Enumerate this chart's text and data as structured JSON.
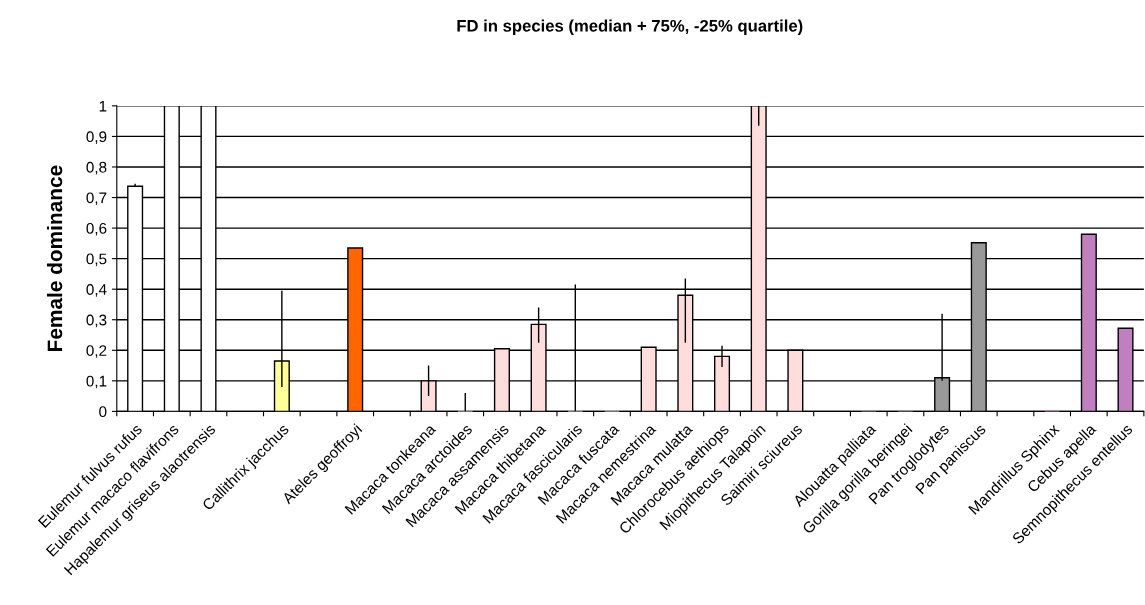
{
  "chart_data": {
    "type": "bar",
    "title": "FD in species (median + 75%, -25% quartile)",
    "ylabel": "Female dominance",
    "categories": [
      "Eulemur fulvus rufus",
      "Eulemur macaco flavifrons",
      "Hapalemur griseus alaotrensis",
      null,
      "Callithrix jacchus",
      null,
      "Ateles geoffroyi",
      null,
      "Macaca tonkeana",
      "Macaca arctoides",
      "Macaca assamensis",
      "Macaca thibetana",
      "Macaca fascicularis",
      "Macaca fuscata",
      "Macaca nemestrina",
      "Macaca mulatta",
      "Chlorocebus aethiops",
      "Miopithecus Talapoin",
      "Saimiri sciureus",
      null,
      "Alouatta palliata",
      "Gorilla gorilla beringei",
      "Pan troglodytes",
      "Pan paniscus",
      null,
      "Mandrillus Sphinx",
      "Cebus apella",
      "Semnopithecus entellus"
    ],
    "values": [
      0.737,
      1.0,
      1.0,
      null,
      0.165,
      null,
      0.535,
      null,
      0.1,
      0,
      0.205,
      0.285,
      0,
      0,
      0.21,
      0.38,
      0.18,
      1.0,
      0.2,
      null,
      0,
      0,
      0.11,
      0.552,
      null,
      0,
      0.58,
      0.272
    ],
    "errors": [
      [
        0.735,
        0.745
      ],
      null,
      null,
      null,
      [
        0.08,
        0.395
      ],
      null,
      null,
      null,
      [
        0.05,
        0.15
      ],
      [
        0,
        0.06
      ],
      null,
      [
        0.225,
        0.34
      ],
      [
        0,
        0.415
      ],
      null,
      null,
      [
        0.225,
        0.435
      ],
      [
        0.145,
        0.215
      ],
      [
        0.935,
        1.0
      ],
      null,
      null,
      null,
      null,
      [
        0.1,
        0.32
      ],
      null,
      null,
      null,
      null,
      null
    ],
    "colors": [
      "#ffffff",
      "#ffffff",
      "#ffffff",
      "#ffffff",
      "#ffff99",
      "#ffffff",
      "#ff6600",
      "#ffffff",
      "#ffdddd",
      "#ffdddd",
      "#ffdddd",
      "#ffdddd",
      "#ffdddd",
      "#ffdddd",
      "#ffdddd",
      "#ffdddd",
      "#ffdddd",
      "#ffdddd",
      "#ffdddd",
      "#ffffff",
      "#999999",
      "#999999",
      "#999999",
      "#999999",
      "#ffffff",
      "#c080c0",
      "#c080c0",
      "#c080c0"
    ],
    "ylim": [
      0,
      1
    ],
    "yticks": [
      0,
      {
        "value": 0.1,
        "label": "0,1"
      },
      {
        "value": 0.2,
        "label": "0,2"
      },
      {
        "value": 0.3,
        "label": "0,3"
      },
      {
        "value": 0.4,
        "label": "0,4"
      },
      {
        "value": 0.5,
        "label": "0,5"
      },
      {
        "value": 0.6,
        "label": "0,6"
      },
      {
        "value": 0.7,
        "label": "0,7"
      },
      {
        "value": 0.8,
        "label": "0,8"
      },
      {
        "value": 0.9,
        "label": "0,9"
      },
      1
    ],
    "grid": "y",
    "legend": false
  }
}
